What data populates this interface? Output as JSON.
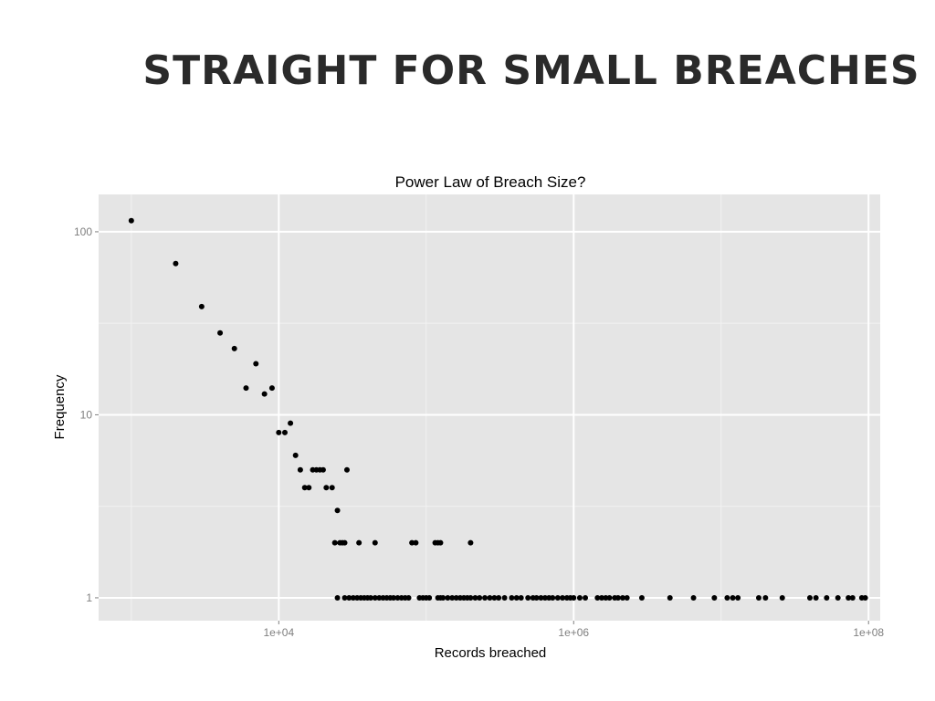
{
  "slide": {
    "title": "STRAIGHT FOR SMALL BREACHES"
  },
  "colors": {
    "panel": "#e5e5e5",
    "grid_major": "#ffffff",
    "grid_minor": "#f2f2f2",
    "point": "#000000"
  },
  "chart_data": {
    "type": "scatter",
    "title": "Power Law of Breach Size?",
    "xlabel": "Records breached",
    "ylabel": "Frequency",
    "x_scale": "log10",
    "y_scale": "log10",
    "xlim": [
      600,
      120000000
    ],
    "ylim": [
      0.75,
      160
    ],
    "x_ticks": [
      {
        "value": 10000,
        "label": "1e+04"
      },
      {
        "value": 1000000,
        "label": "1e+06"
      },
      {
        "value": 100000000,
        "label": "1e+08"
      }
    ],
    "y_ticks": [
      {
        "value": 1,
        "label": "1"
      },
      {
        "value": 10,
        "label": "10"
      },
      {
        "value": 100,
        "label": "100"
      }
    ],
    "grid": true,
    "series": [
      {
        "points": [
          {
            "x": 1000,
            "y": 115
          },
          {
            "x": 2000,
            "y": 67
          },
          {
            "x": 3000,
            "y": 39
          },
          {
            "x": 4000,
            "y": 28
          },
          {
            "x": 5000,
            "y": 23
          },
          {
            "x": 6000,
            "y": 14
          },
          {
            "x": 7000,
            "y": 19
          },
          {
            "x": 8000,
            "y": 13
          },
          {
            "x": 9000,
            "y": 14
          },
          {
            "x": 10000,
            "y": 8
          },
          {
            "x": 11000,
            "y": 8
          },
          {
            "x": 12000,
            "y": 9
          },
          {
            "x": 13000,
            "y": 6
          },
          {
            "x": 14000,
            "y": 5
          },
          {
            "x": 15000,
            "y": 4
          },
          {
            "x": 16000,
            "y": 4
          },
          {
            "x": 17000,
            "y": 5
          },
          {
            "x": 18000,
            "y": 5
          },
          {
            "x": 19000,
            "y": 5
          },
          {
            "x": 20000,
            "y": 5
          },
          {
            "x": 21000,
            "y": 4
          },
          {
            "x": 23000,
            "y": 4
          },
          {
            "x": 24000,
            "y": 2
          },
          {
            "x": 25000,
            "y": 3
          },
          {
            "x": 26000,
            "y": 2
          },
          {
            "x": 27000,
            "y": 2
          },
          {
            "x": 28000,
            "y": 2
          },
          {
            "x": 29000,
            "y": 5
          },
          {
            "x": 35000,
            "y": 2
          },
          {
            "x": 45000,
            "y": 2
          },
          {
            "x": 80000,
            "y": 2
          },
          {
            "x": 85000,
            "y": 2
          },
          {
            "x": 115000,
            "y": 2
          },
          {
            "x": 120000,
            "y": 2
          },
          {
            "x": 125000,
            "y": 2
          },
          {
            "x": 200000,
            "y": 2
          },
          {
            "x": 25000,
            "y": 1
          },
          {
            "x": 28000,
            "y": 1
          },
          {
            "x": 30000,
            "y": 1
          },
          {
            "x": 32000,
            "y": 1
          },
          {
            "x": 34000,
            "y": 1
          },
          {
            "x": 36000,
            "y": 1
          },
          {
            "x": 38000,
            "y": 1
          },
          {
            "x": 40000,
            "y": 1
          },
          {
            "x": 42000,
            "y": 1
          },
          {
            "x": 45000,
            "y": 1
          },
          {
            "x": 48000,
            "y": 1
          },
          {
            "x": 51000,
            "y": 1
          },
          {
            "x": 54000,
            "y": 1
          },
          {
            "x": 57000,
            "y": 1
          },
          {
            "x": 60000,
            "y": 1
          },
          {
            "x": 64000,
            "y": 1
          },
          {
            "x": 68000,
            "y": 1
          },
          {
            "x": 72000,
            "y": 1
          },
          {
            "x": 76000,
            "y": 1
          },
          {
            "x": 90000,
            "y": 1
          },
          {
            "x": 95000,
            "y": 1
          },
          {
            "x": 100000,
            "y": 1
          },
          {
            "x": 105000,
            "y": 1
          },
          {
            "x": 120000,
            "y": 1
          },
          {
            "x": 125000,
            "y": 1
          },
          {
            "x": 130000,
            "y": 1
          },
          {
            "x": 140000,
            "y": 1
          },
          {
            "x": 150000,
            "y": 1
          },
          {
            "x": 160000,
            "y": 1
          },
          {
            "x": 170000,
            "y": 1
          },
          {
            "x": 180000,
            "y": 1
          },
          {
            "x": 190000,
            "y": 1
          },
          {
            "x": 200000,
            "y": 1
          },
          {
            "x": 215000,
            "y": 1
          },
          {
            "x": 230000,
            "y": 1
          },
          {
            "x": 250000,
            "y": 1
          },
          {
            "x": 270000,
            "y": 1
          },
          {
            "x": 290000,
            "y": 1
          },
          {
            "x": 310000,
            "y": 1
          },
          {
            "x": 340000,
            "y": 1
          },
          {
            "x": 380000,
            "y": 1
          },
          {
            "x": 410000,
            "y": 1
          },
          {
            "x": 440000,
            "y": 1
          },
          {
            "x": 490000,
            "y": 1
          },
          {
            "x": 530000,
            "y": 1
          },
          {
            "x": 560000,
            "y": 1
          },
          {
            "x": 600000,
            "y": 1
          },
          {
            "x": 640000,
            "y": 1
          },
          {
            "x": 680000,
            "y": 1
          },
          {
            "x": 720000,
            "y": 1
          },
          {
            "x": 780000,
            "y": 1
          },
          {
            "x": 840000,
            "y": 1
          },
          {
            "x": 900000,
            "y": 1
          },
          {
            "x": 950000,
            "y": 1
          },
          {
            "x": 1000000,
            "y": 1
          },
          {
            "x": 1100000,
            "y": 1
          },
          {
            "x": 1200000,
            "y": 1
          },
          {
            "x": 1450000,
            "y": 1
          },
          {
            "x": 1550000,
            "y": 1
          },
          {
            "x": 1650000,
            "y": 1
          },
          {
            "x": 1750000,
            "y": 1
          },
          {
            "x": 1900000,
            "y": 1
          },
          {
            "x": 2000000,
            "y": 1
          },
          {
            "x": 2150000,
            "y": 1
          },
          {
            "x": 2300000,
            "y": 1
          },
          {
            "x": 2900000,
            "y": 1
          },
          {
            "x": 4500000,
            "y": 1
          },
          {
            "x": 6500000,
            "y": 1
          },
          {
            "x": 9000000,
            "y": 1
          },
          {
            "x": 11000000,
            "y": 1
          },
          {
            "x": 12000000,
            "y": 1
          },
          {
            "x": 13000000,
            "y": 1
          },
          {
            "x": 18000000,
            "y": 1
          },
          {
            "x": 20000000,
            "y": 1
          },
          {
            "x": 26000000,
            "y": 1
          },
          {
            "x": 40000000,
            "y": 1
          },
          {
            "x": 44000000,
            "y": 1
          },
          {
            "x": 52000000,
            "y": 1
          },
          {
            "x": 62000000,
            "y": 1
          },
          {
            "x": 73000000,
            "y": 1
          },
          {
            "x": 78000000,
            "y": 1
          },
          {
            "x": 90000000,
            "y": 1
          },
          {
            "x": 95000000,
            "y": 1
          }
        ]
      }
    ]
  }
}
